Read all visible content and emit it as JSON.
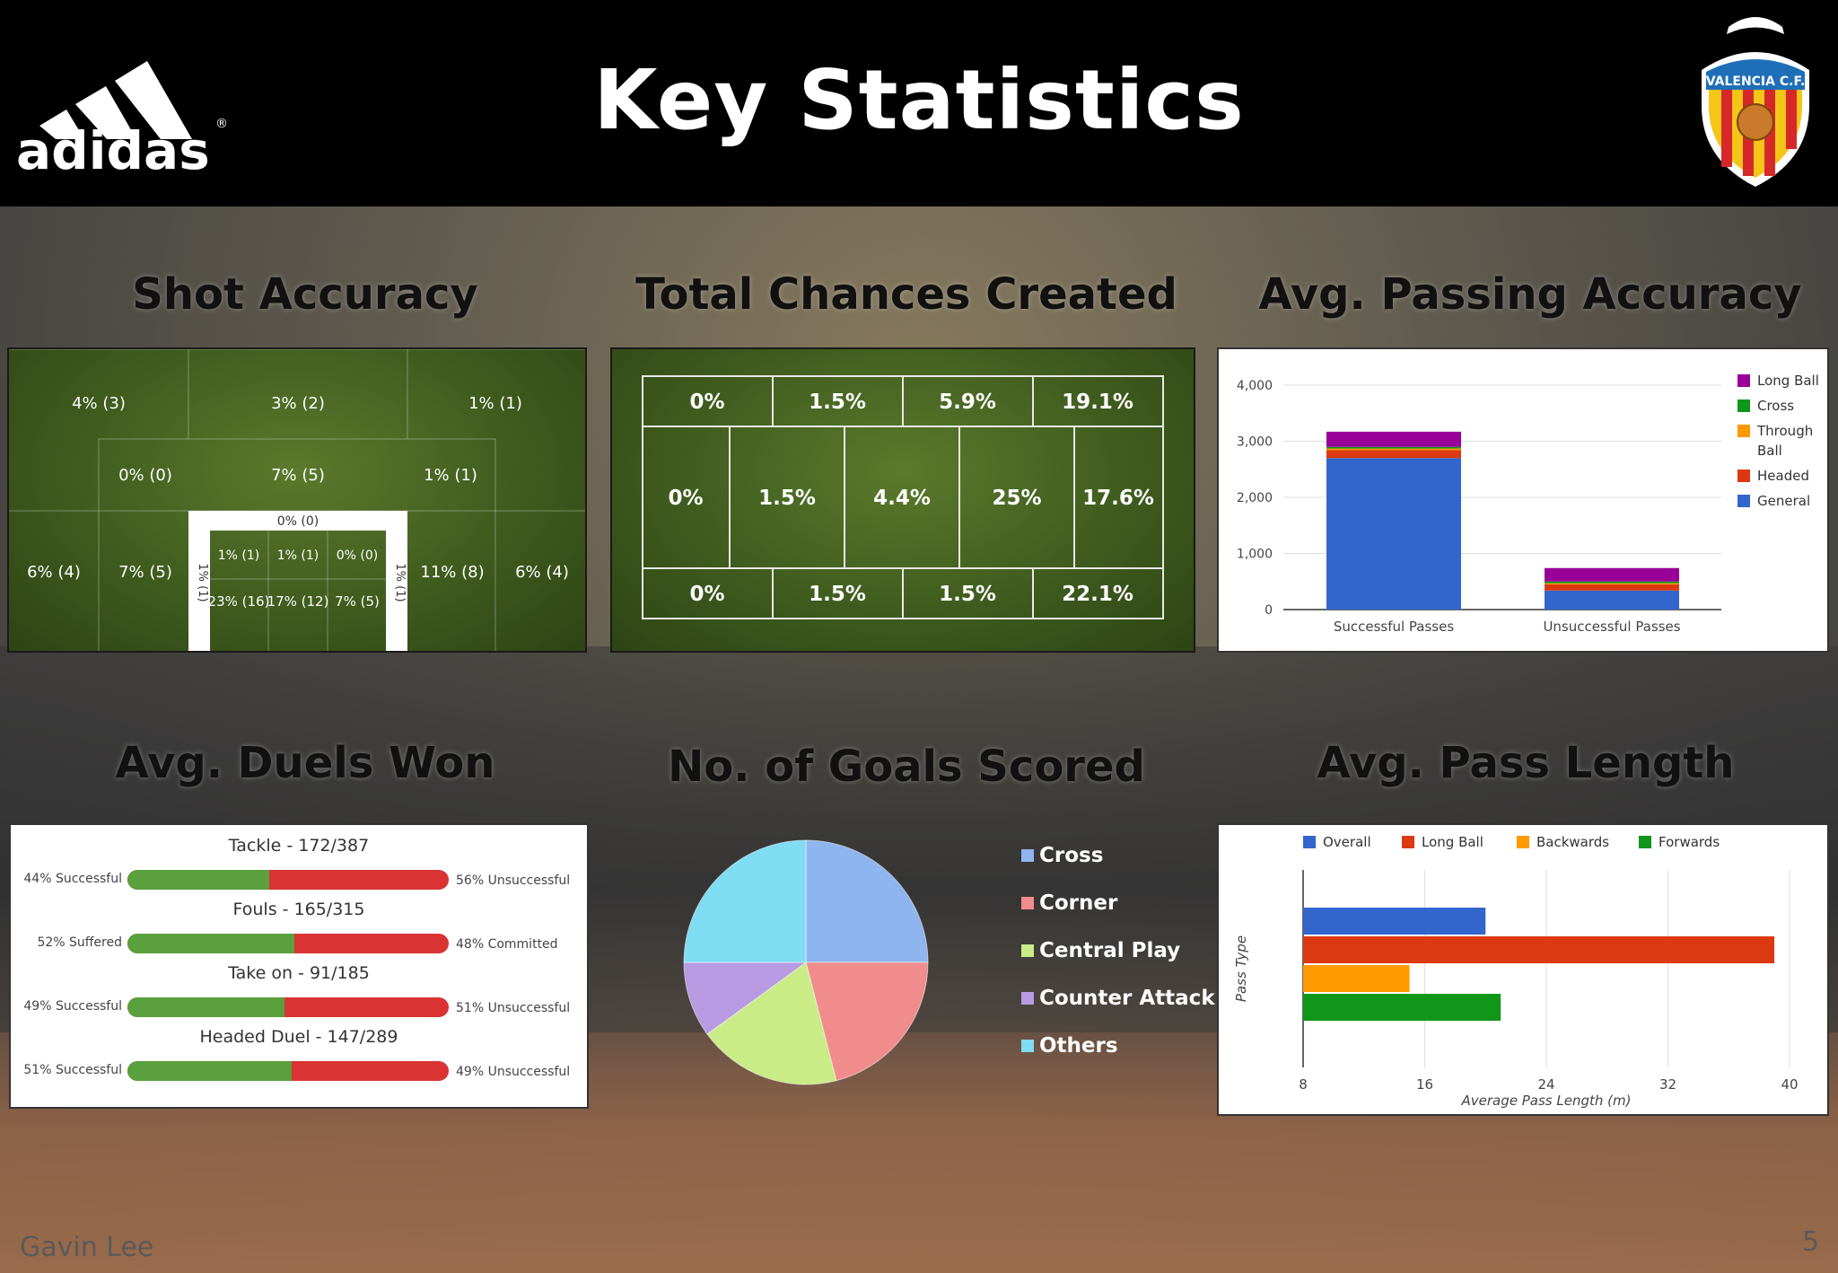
{
  "header": {
    "title": "Key Statistics",
    "brand": "adidas",
    "club": "VALENCIA C.F."
  },
  "footer": {
    "author": "Gavin Lee",
    "page": "5"
  },
  "sections": {
    "shot_accuracy": "Shot Accuracy",
    "chances": "Total Chances Created",
    "passing": "Avg. Passing Accuracy",
    "duels": "Avg. Duels Won",
    "goals": "No. of Goals Scored",
    "pass_length": "Avg. Pass Length"
  },
  "colors": {
    "general": "#3366cc",
    "headed": "#dc3912",
    "through": "#ff9900",
    "cross": "#109618",
    "long": "#990099",
    "overall": "#3366cc",
    "longball": "#dc3912",
    "backwards": "#ff9900",
    "forwards": "#109618",
    "success": "#5aa03d",
    "fail": "#d93333"
  },
  "chart_data": [
    {
      "type": "table",
      "id": "shot_accuracy",
      "title": "Shot Accuracy",
      "zones": {
        "top": [
          "4% (3)",
          "3% (2)",
          "1% (1)"
        ],
        "mid": [
          "0% (0)",
          "7% (5)",
          "1% (1)"
        ],
        "goal_top": "0% (0)",
        "goal_side_left": "1% (1)",
        "goal_side_right": "1% (1)",
        "goal_upper": [
          "1% (1)",
          "1% (1)",
          "0% (0)"
        ],
        "goal_lower": [
          "23% (16)",
          "17% (12)",
          "7% (5)"
        ],
        "low_outer": [
          "6% (4)",
          "7% (5)",
          "11% (8)",
          "6% (4)"
        ]
      }
    },
    {
      "type": "table",
      "id": "chances",
      "title": "Total Chances Created",
      "top_row": [
        "0%",
        "1.5%",
        "5.9%",
        "19.1%"
      ],
      "mid_row": [
        "0%",
        "1.5%",
        "4.4%",
        "25%",
        "17.6%"
      ],
      "bottom_row": [
        "0%",
        "1.5%",
        "1.5%",
        "22.1%"
      ]
    },
    {
      "type": "bar",
      "id": "passing",
      "stacked": true,
      "title": "Avg. Passing Accuracy",
      "categories": [
        "Successful Passes",
        "Unsuccessful Passes"
      ],
      "series": [
        {
          "name": "General",
          "values": [
            2700,
            340
          ]
        },
        {
          "name": "Headed",
          "values": [
            140,
            110
          ]
        },
        {
          "name": "Through Ball",
          "values": [
            30,
            20
          ]
        },
        {
          "name": "Cross",
          "values": [
            30,
            30
          ]
        },
        {
          "name": "Long Ball",
          "values": [
            270,
            240
          ]
        }
      ],
      "legend_order": [
        "Long Ball",
        "Cross",
        "Through Ball",
        "Headed",
        "General"
      ],
      "ylim": [
        0,
        4000
      ],
      "yticks": [
        "0",
        "1,000",
        "2,000",
        "3,000",
        "4,000"
      ],
      "legend": "right"
    },
    {
      "type": "bar",
      "id": "duels",
      "orientation": "horizontal",
      "title": "Avg. Duels Won",
      "items": [
        {
          "label": "Tackle - 172/387",
          "left": "44% Successful",
          "right": "56% Unsuccessful",
          "value": 44
        },
        {
          "label": "Fouls - 165/315",
          "left": "52% Suffered",
          "right": "48% Committed",
          "value": 52
        },
        {
          "label": "Take on - 91/185",
          "left": "49% Successful",
          "right": "51% Unsuccessful",
          "value": 49
        },
        {
          "label": "Headed Duel - 147/289",
          "left": "51% Successful",
          "right": "49% Unsuccessful",
          "value": 51
        }
      ]
    },
    {
      "type": "pie",
      "id": "goals",
      "title": "No. of Goals Scored",
      "labels": [
        "Cross",
        "Corner",
        "Central Play",
        "Counter Attack",
        "Others"
      ],
      "values": [
        25,
        21,
        19,
        10,
        25
      ],
      "colors": [
        "#8fb5ee",
        "#f18c8c",
        "#c9ec86",
        "#b79ae2",
        "#7fdcf2"
      ],
      "legend": "right"
    },
    {
      "type": "bar",
      "id": "pass_length",
      "orientation": "horizontal",
      "title": "Avg. Pass Length",
      "categories": [
        "Overall",
        "Long Ball",
        "Backwards",
        "Forwards"
      ],
      "values": [
        20,
        39,
        15,
        21
      ],
      "xlim": [
        8,
        40
      ],
      "xticks": [
        "8",
        "16",
        "24",
        "32",
        "40"
      ],
      "xlabel": "Average Pass Length (m)",
      "ylabel": "Pass Type",
      "legend": "top"
    }
  ]
}
